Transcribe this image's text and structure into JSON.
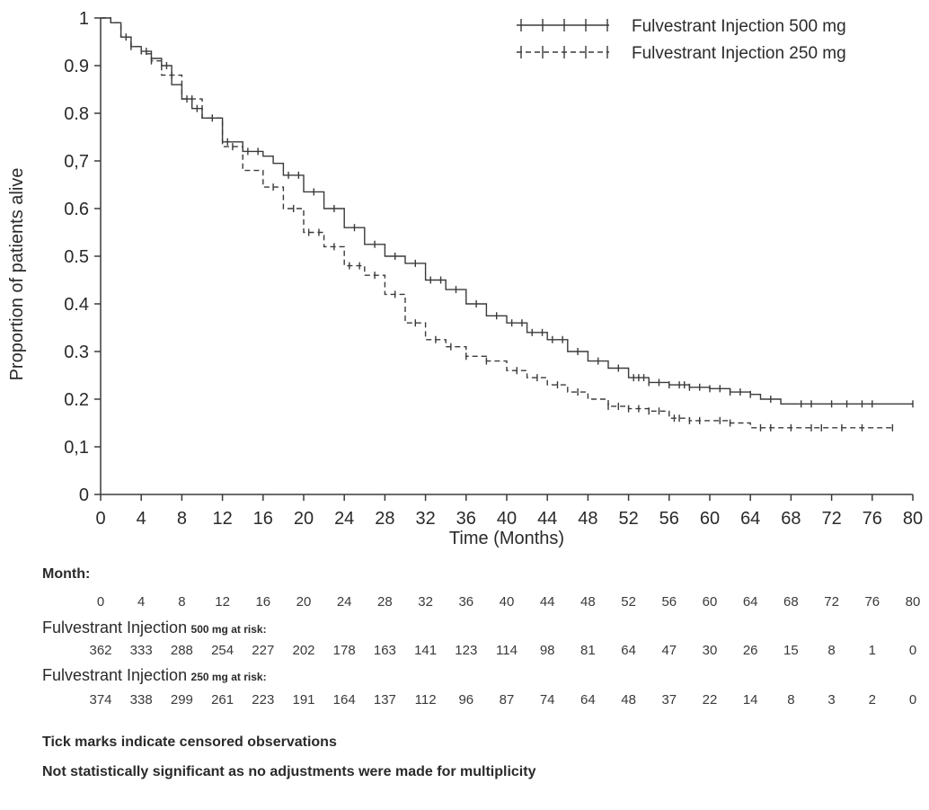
{
  "chart_data": {
    "type": "line",
    "title": "",
    "xlabel": "Time (Months)",
    "ylabel": "Proportion of patients alive",
    "xlim": [
      0,
      80
    ],
    "ylim": [
      0,
      1
    ],
    "x_ticks": [
      0,
      4,
      8,
      12,
      16,
      20,
      24,
      28,
      32,
      36,
      40,
      44,
      48,
      52,
      56,
      60,
      64,
      68,
      72,
      76,
      80
    ],
    "y_ticks": [
      0,
      0.1,
      0.2,
      0.3,
      0.4,
      0.5,
      0.6,
      0.7,
      0.8,
      0.9,
      1
    ],
    "y_tick_labels": [
      "0",
      "0,1",
      "0.2",
      "0.3",
      "0.4",
      "0.5",
      "0.6",
      "0,7",
      "0.8",
      "0.9",
      "1"
    ],
    "grid": false,
    "legend_position": "top-right",
    "series": [
      {
        "name": "Fulvestrant Injection 500 mg",
        "line": "solid",
        "color": "#3a3a3a",
        "points": [
          [
            0,
            1.0
          ],
          [
            1,
            0.99
          ],
          [
            2,
            0.96
          ],
          [
            3,
            0.94
          ],
          [
            4,
            0.93
          ],
          [
            5,
            0.915
          ],
          [
            6,
            0.9
          ],
          [
            7,
            0.86
          ],
          [
            8,
            0.83
          ],
          [
            9,
            0.81
          ],
          [
            10,
            0.79
          ],
          [
            12,
            0.74
          ],
          [
            14,
            0.72
          ],
          [
            16,
            0.71
          ],
          [
            17,
            0.695
          ],
          [
            18,
            0.67
          ],
          [
            20,
            0.635
          ],
          [
            22,
            0.6
          ],
          [
            24,
            0.56
          ],
          [
            26,
            0.525
          ],
          [
            28,
            0.5
          ],
          [
            30,
            0.485
          ],
          [
            32,
            0.45
          ],
          [
            34,
            0.43
          ],
          [
            36,
            0.4
          ],
          [
            38,
            0.375
          ],
          [
            40,
            0.36
          ],
          [
            42,
            0.34
          ],
          [
            44,
            0.325
          ],
          [
            46,
            0.3
          ],
          [
            48,
            0.28
          ],
          [
            50,
            0.265
          ],
          [
            52,
            0.245
          ],
          [
            54,
            0.235
          ],
          [
            56,
            0.23
          ],
          [
            58,
            0.225
          ],
          [
            60,
            0.222
          ],
          [
            62,
            0.215
          ],
          [
            64,
            0.21
          ],
          [
            65,
            0.2
          ],
          [
            67,
            0.19
          ],
          [
            80,
            0.19
          ]
        ],
        "censored": [
          2.5,
          4.5,
          6.5,
          8.5,
          9.5,
          12.5,
          14.5,
          15.5,
          18.5,
          19.5,
          21,
          23,
          25,
          27,
          29,
          31,
          32.5,
          33.5,
          35,
          37,
          39,
          40.5,
          41.5,
          42.5,
          43.5,
          44.5,
          45.5,
          47,
          49,
          51,
          52.5,
          53,
          53.5,
          54,
          55,
          56,
          57,
          57.5,
          58,
          59,
          60,
          61,
          62,
          63,
          64,
          66,
          69,
          70,
          72,
          73.5,
          75,
          76,
          80
        ]
      },
      {
        "name": "Fulvestrant Injection 250 mg",
        "line": "dashed",
        "color": "#3a3a3a",
        "points": [
          [
            0,
            1.0
          ],
          [
            1,
            0.99
          ],
          [
            2,
            0.96
          ],
          [
            3,
            0.94
          ],
          [
            4,
            0.925
          ],
          [
            5,
            0.91
          ],
          [
            6,
            0.88
          ],
          [
            8,
            0.83
          ],
          [
            10,
            0.79
          ],
          [
            12,
            0.73
          ],
          [
            14,
            0.68
          ],
          [
            16,
            0.645
          ],
          [
            18,
            0.6
          ],
          [
            20,
            0.55
          ],
          [
            22,
            0.52
          ],
          [
            24,
            0.48
          ],
          [
            26,
            0.46
          ],
          [
            28,
            0.42
          ],
          [
            30,
            0.36
          ],
          [
            32,
            0.325
          ],
          [
            34,
            0.31
          ],
          [
            36,
            0.29
          ],
          [
            38,
            0.28
          ],
          [
            40,
            0.26
          ],
          [
            42,
            0.245
          ],
          [
            44,
            0.23
          ],
          [
            46,
            0.215
          ],
          [
            48,
            0.2
          ],
          [
            50,
            0.185
          ],
          [
            52,
            0.18
          ],
          [
            54,
            0.175
          ],
          [
            56,
            0.16
          ],
          [
            58,
            0.155
          ],
          [
            60,
            0.155
          ],
          [
            62,
            0.15
          ],
          [
            64,
            0.14
          ],
          [
            78,
            0.14
          ]
        ],
        "censored": [
          3,
          5,
          7,
          9,
          11,
          13,
          17,
          19,
          20.5,
          21.5,
          23,
          24.5,
          25.5,
          27,
          29,
          31,
          33,
          34.5,
          36,
          38,
          41,
          43,
          45,
          47,
          50,
          51,
          52,
          53,
          54,
          55,
          56.5,
          57,
          58,
          59,
          61,
          62,
          65,
          66,
          68,
          70,
          71,
          73,
          75,
          78
        ]
      }
    ]
  },
  "legend": {
    "items": [
      {
        "label": "Fulvestrant Injection  500 mg"
      },
      {
        "label": "Fulvestrant Injection 250 mg"
      }
    ]
  },
  "risk_table": {
    "month_label": "Month:",
    "months": [
      "0",
      "4",
      "8",
      "12",
      "16",
      "20",
      "24",
      "28",
      "32",
      "36",
      "40",
      "44",
      "48",
      "52",
      "56",
      "60",
      "64",
      "68",
      "72",
      "76",
      "80"
    ],
    "group500_name": "Fulvestrant Injection",
    "group500_suffix": "500 mg at risk:",
    "group500_values": [
      "362",
      "333",
      "288",
      "254",
      "227",
      "202",
      "178",
      "163",
      "141",
      "123",
      "114",
      "98",
      "81",
      "64",
      "47",
      "30",
      "26",
      "15",
      "8",
      "1",
      "0"
    ],
    "group250_name": "Fulvestrant Injection",
    "group250_suffix": "250 mg at risk:",
    "group250_values": [
      "374",
      "338",
      "299",
      "261",
      "223",
      "191",
      "164",
      "137",
      "112",
      "96",
      "87",
      "74",
      "64",
      "48",
      "37",
      "22",
      "14",
      "8",
      "3",
      "2",
      "0"
    ]
  },
  "notes": {
    "censored": "Tick marks indicate censored observations",
    "multiplicity": "Not statistically significant as no adjustments were made for multiplicity"
  }
}
